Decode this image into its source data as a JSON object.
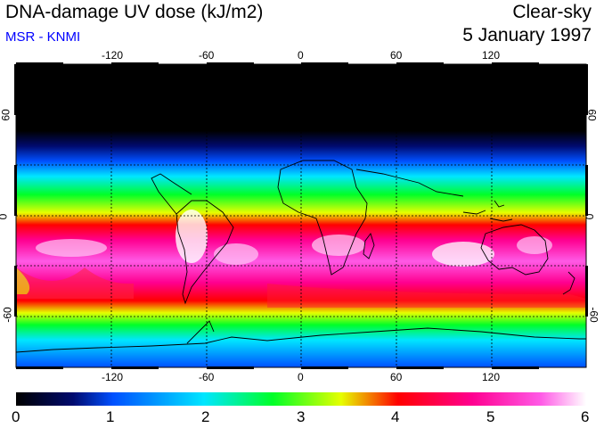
{
  "header": {
    "title": "DNA-damage UV dose (kJ/m2)",
    "subtitle": "MSR - KNMI",
    "mode": "Clear-sky",
    "date": "5 January 1997"
  },
  "colors": {
    "subtitle": "#0000ff",
    "colormap": [
      "#000000",
      "#000a6e",
      "#0050ff",
      "#00e6ff",
      "#00ff28",
      "#e6ff00",
      "#ff0000",
      "#ff0090",
      "#ff5ae6",
      "#ffffff"
    ]
  },
  "axes": {
    "lon_ticks": [
      "-120",
      "-60",
      "0",
      "60",
      "120"
    ],
    "lat_ticks": [
      "60",
      "0",
      "-60"
    ]
  },
  "colorbar": {
    "labels": [
      "0",
      "1",
      "2",
      "3",
      "4",
      "5",
      "6"
    ],
    "min": 0,
    "max": 6
  }
}
